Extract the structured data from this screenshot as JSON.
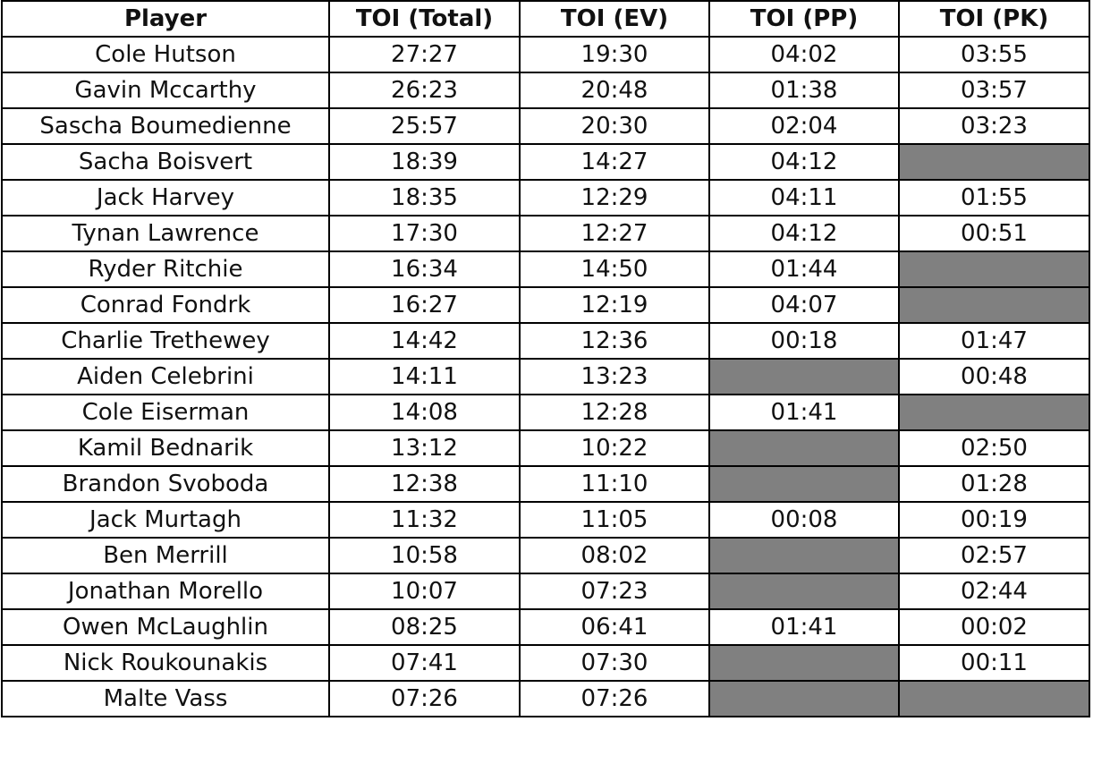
{
  "table": {
    "header": [
      "Player",
      "TOI (Total)",
      "TOI (EV)",
      "TOI (PP)",
      "TOI (PK)"
    ],
    "rows": [
      [
        "Cole Hutson",
        "27:27",
        "19:30",
        "04:02",
        "03:55"
      ],
      [
        "Gavin Mccarthy",
        "26:23",
        "20:48",
        "01:38",
        "03:57"
      ],
      [
        "Sascha Boumedienne",
        "25:57",
        "20:30",
        "02:04",
        "03:23"
      ],
      [
        "Sacha Boisvert",
        "18:39",
        "14:27",
        "04:12",
        null
      ],
      [
        "Jack Harvey",
        "18:35",
        "12:29",
        "04:11",
        "01:55"
      ],
      [
        "Tynan Lawrence",
        "17:30",
        "12:27",
        "04:12",
        "00:51"
      ],
      [
        "Ryder Ritchie",
        "16:34",
        "14:50",
        "01:44",
        null
      ],
      [
        "Conrad Fondrk",
        "16:27",
        "12:19",
        "04:07",
        null
      ],
      [
        "Charlie Trethewey",
        "14:42",
        "12:36",
        "00:18",
        "01:47"
      ],
      [
        "Aiden Celebrini",
        "14:11",
        "13:23",
        null,
        "00:48"
      ],
      [
        "Cole Eiserman",
        "14:08",
        "12:28",
        "01:41",
        null
      ],
      [
        "Kamil Bednarik",
        "13:12",
        "10:22",
        null,
        "02:50"
      ],
      [
        "Brandon Svoboda",
        "12:38",
        "11:10",
        null,
        "01:28"
      ],
      [
        "Jack Murtagh",
        "11:32",
        "11:05",
        "00:08",
        "00:19"
      ],
      [
        "Ben Merrill",
        "10:58",
        "08:02",
        null,
        "02:57"
      ],
      [
        "Jonathan Morello",
        "10:07",
        "07:23",
        null,
        "02:44"
      ],
      [
        "Owen McLaughlin",
        "08:25",
        "06:41",
        "01:41",
        "00:02"
      ],
      [
        "Nick Roukounakis",
        "07:41",
        "07:30",
        null,
        "00:11"
      ],
      [
        "Malte Vass",
        "07:26",
        "07:26",
        null,
        null
      ]
    ]
  }
}
